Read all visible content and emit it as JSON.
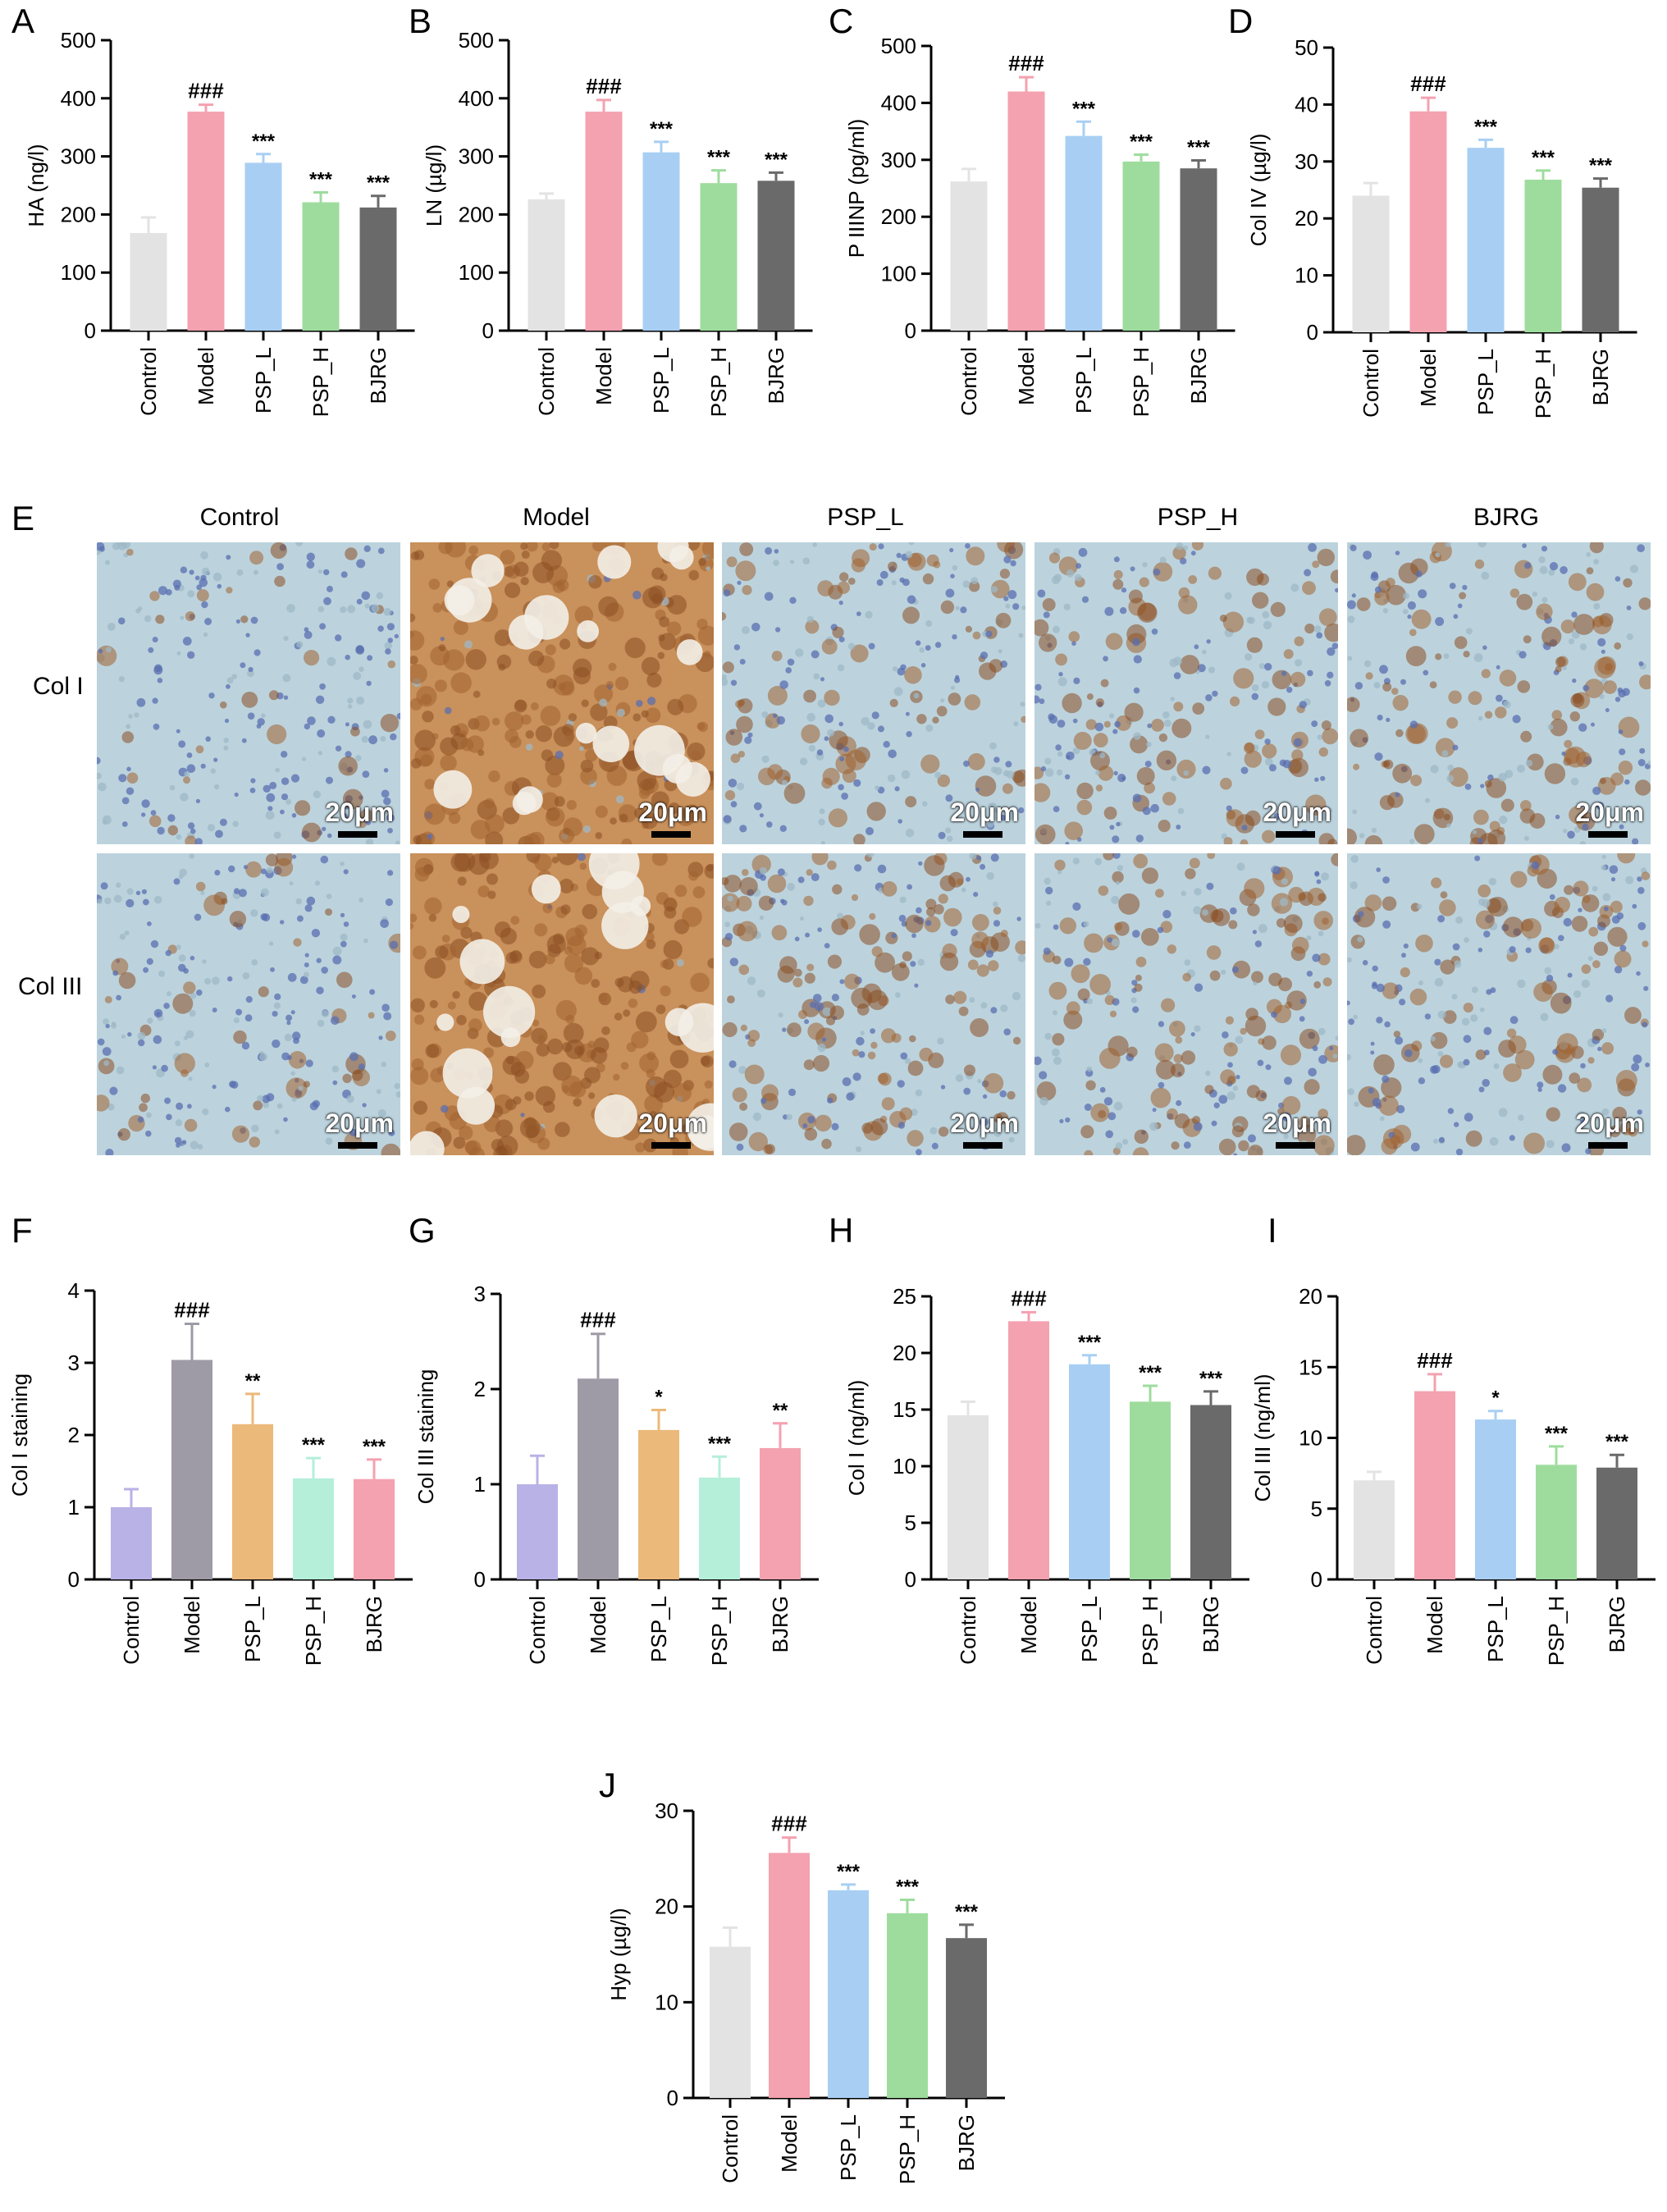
{
  "charts": {
    "A": {
      "letter": "A",
      "ylabel": "HA (ng/l)",
      "ymax": 500,
      "ticks": [
        0,
        100,
        200,
        300,
        400,
        500
      ]
    },
    "B": {
      "letter": "B",
      "ylabel": "LN (µg/l)",
      "ymax": 500,
      "ticks": [
        0,
        100,
        200,
        300,
        400,
        500
      ]
    },
    "C": {
      "letter": "C",
      "ylabel": "P IIINP (pg/ml)",
      "ymax": 500,
      "ticks": [
        0,
        100,
        200,
        300,
        400,
        500
      ]
    },
    "D": {
      "letter": "D",
      "ylabel": "Col IV (µg/l)",
      "ymax": 50,
      "ticks": [
        0,
        10,
        20,
        30,
        40,
        50
      ]
    },
    "F": {
      "letter": "F",
      "ylabel": "Col I staining",
      "ymax": 4,
      "ticks": [
        0,
        1,
        2,
        3,
        4
      ]
    },
    "G": {
      "letter": "G",
      "ylabel": "Col III staining",
      "ymax": 3,
      "ticks": [
        0,
        1,
        2,
        3
      ]
    },
    "H": {
      "letter": "H",
      "ylabel": "Col I (ng/ml)",
      "ymax": 25,
      "ticks": [
        0,
        5,
        10,
        15,
        20,
        25
      ]
    },
    "I": {
      "letter": "I",
      "ylabel": "Col III (ng/ml)",
      "ymax": 20,
      "ticks": [
        0,
        5,
        10,
        15,
        20
      ]
    },
    "J": {
      "letter": "J",
      "ylabel": "Hyp (µg/l)",
      "ymax": 30,
      "ticks": [
        0,
        10,
        20,
        30
      ]
    }
  },
  "chart_data": [
    {
      "panel": "A",
      "type": "bar",
      "categories": [
        "Control",
        "Model",
        "PSP_L",
        "PSP_H",
        "BJRG"
      ],
      "values": [
        168,
        377,
        289,
        221,
        212
      ],
      "errors": [
        27,
        12,
        15,
        17,
        20
      ],
      "annotations": [
        "",
        "###",
        "***",
        "***",
        "***"
      ],
      "ylabel": "HA (ng/l)",
      "ylim": [
        0,
        500
      ]
    },
    {
      "panel": "B",
      "type": "bar",
      "categories": [
        "Control",
        "Model",
        "PSP_L",
        "PSP_H",
        "BJRG"
      ],
      "values": [
        226,
        377,
        307,
        254,
        258
      ],
      "errors": [
        10,
        20,
        18,
        22,
        14
      ],
      "annotations": [
        "",
        "###",
        "***",
        "***",
        "***"
      ],
      "ylabel": "LN (µg/l)",
      "ylim": [
        0,
        500
      ]
    },
    {
      "panel": "C",
      "type": "bar",
      "categories": [
        "Control",
        "Model",
        "PSP_L",
        "PSP_H",
        "BJRG"
      ],
      "values": [
        262,
        420,
        342,
        297,
        285
      ],
      "errors": [
        22,
        25,
        25,
        12,
        14
      ],
      "annotations": [
        "",
        "###",
        "***",
        "***",
        "***"
      ],
      "ylabel": "P IIINP (pg/ml)",
      "ylim": [
        0,
        500
      ]
    },
    {
      "panel": "D",
      "type": "bar",
      "categories": [
        "Control",
        "Model",
        "PSP_L",
        "PSP_H",
        "BJRG"
      ],
      "values": [
        24,
        38.8,
        32.4,
        26.8,
        25.4
      ],
      "errors": [
        2.2,
        2.4,
        1.4,
        1.6,
        1.6
      ],
      "annotations": [
        "",
        "###",
        "***",
        "***",
        "***"
      ],
      "ylabel": "Col IV (µg/l)",
      "ylim": [
        0,
        50
      ]
    },
    {
      "panel": "F",
      "type": "bar",
      "categories": [
        "Control",
        "Model",
        "PSP_L",
        "PSP_H",
        "BJRG"
      ],
      "values": [
        1.0,
        3.04,
        2.15,
        1.4,
        1.39
      ],
      "errors": [
        0.25,
        0.5,
        0.42,
        0.28,
        0.27
      ],
      "annotations": [
        "",
        "###",
        "**",
        "***",
        "***"
      ],
      "ylabel": "Col I staining",
      "ylim": [
        0,
        4
      ]
    },
    {
      "panel": "G",
      "type": "bar",
      "categories": [
        "Control",
        "Model",
        "PSP_L",
        "PSP_H",
        "BJRG"
      ],
      "values": [
        1.0,
        2.11,
        1.57,
        1.07,
        1.38
      ],
      "errors": [
        0.3,
        0.47,
        0.21,
        0.22,
        0.26
      ],
      "annotations": [
        "",
        "###",
        "*",
        "***",
        "**"
      ],
      "ylabel": "Col III staining",
      "ylim": [
        0,
        3
      ]
    },
    {
      "panel": "H",
      "type": "bar",
      "categories": [
        "Control",
        "Model",
        "PSP_L",
        "PSP_H",
        "BJRG"
      ],
      "values": [
        14.5,
        22.8,
        19.0,
        15.7,
        15.4
      ],
      "errors": [
        1.2,
        0.8,
        0.8,
        1.4,
        1.2
      ],
      "annotations": [
        "",
        "###",
        "***",
        "***",
        "***"
      ],
      "ylabel": "Col I (ng/ml)",
      "ylim": [
        0,
        25
      ]
    },
    {
      "panel": "I",
      "type": "bar",
      "categories": [
        "Control",
        "Model",
        "PSP_L",
        "PSP_H",
        "BJRG"
      ],
      "values": [
        7.0,
        13.3,
        11.3,
        8.1,
        7.9
      ],
      "errors": [
        0.6,
        1.2,
        0.6,
        1.3,
        0.9
      ],
      "annotations": [
        "",
        "###",
        "*",
        "***",
        "***"
      ],
      "ylabel": "Col III (ng/ml)",
      "ylim": [
        0,
        20
      ]
    },
    {
      "panel": "J",
      "type": "bar",
      "categories": [
        "Control",
        "Model",
        "PSP_L",
        "PSP_H",
        "BJRG"
      ],
      "values": [
        15.8,
        25.6,
        21.7,
        19.3,
        16.7
      ],
      "errors": [
        2.0,
        1.6,
        0.6,
        1.4,
        1.4
      ],
      "annotations": [
        "",
        "###",
        "***",
        "***",
        "***"
      ],
      "ylabel": "Hyp (µg/l)",
      "ylim": [
        0,
        30
      ]
    }
  ],
  "colors": {
    "set1": [
      "#e3e3e3",
      "#f4a1b0",
      "#a8cff3",
      "#9edc9e",
      "#6a6a6a"
    ],
    "set2": [
      "#b9b2e6",
      "#9e9aa6",
      "#ebb97a",
      "#b5efd9",
      "#f4a1b0"
    ]
  },
  "histology": {
    "letter": "E",
    "columns": [
      "Control",
      "Model",
      "PSP_L",
      "PSP_H",
      "BJRG"
    ],
    "rows": [
      "Col I",
      "Col III"
    ],
    "scale_label": "20μm"
  }
}
